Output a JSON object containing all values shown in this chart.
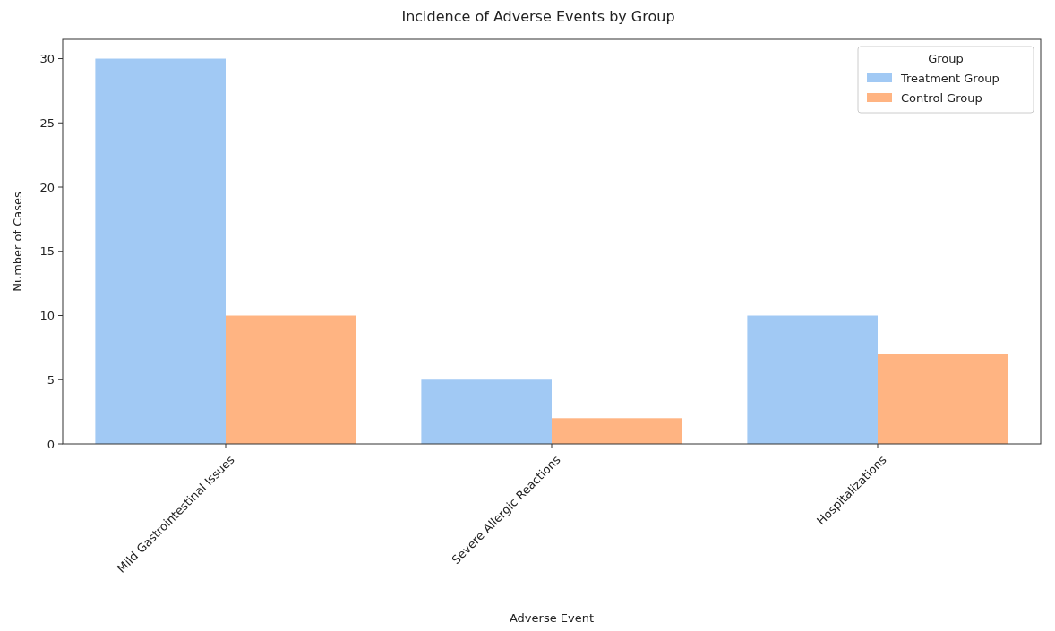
{
  "chart_data": {
    "type": "bar",
    "title": "Incidence of Adverse Events by Group",
    "xlabel": "Adverse Event",
    "ylabel": "Number of Cases",
    "legend_title": "Group",
    "categories": [
      "Mild Gastrointestinal Issues",
      "Severe Allergic Reactions",
      "Hospitalizations"
    ],
    "series": [
      {
        "name": "Treatment Group",
        "color": "#a1c9f4",
        "values": [
          30,
          5,
          10
        ]
      },
      {
        "name": "Control Group",
        "color": "#ffb482",
        "values": [
          10,
          2,
          7
        ]
      }
    ],
    "ylim": [
      0,
      31.5
    ],
    "yticks": [
      0,
      5,
      10,
      15,
      20,
      25,
      30
    ],
    "grid": false,
    "legend": "top right"
  }
}
